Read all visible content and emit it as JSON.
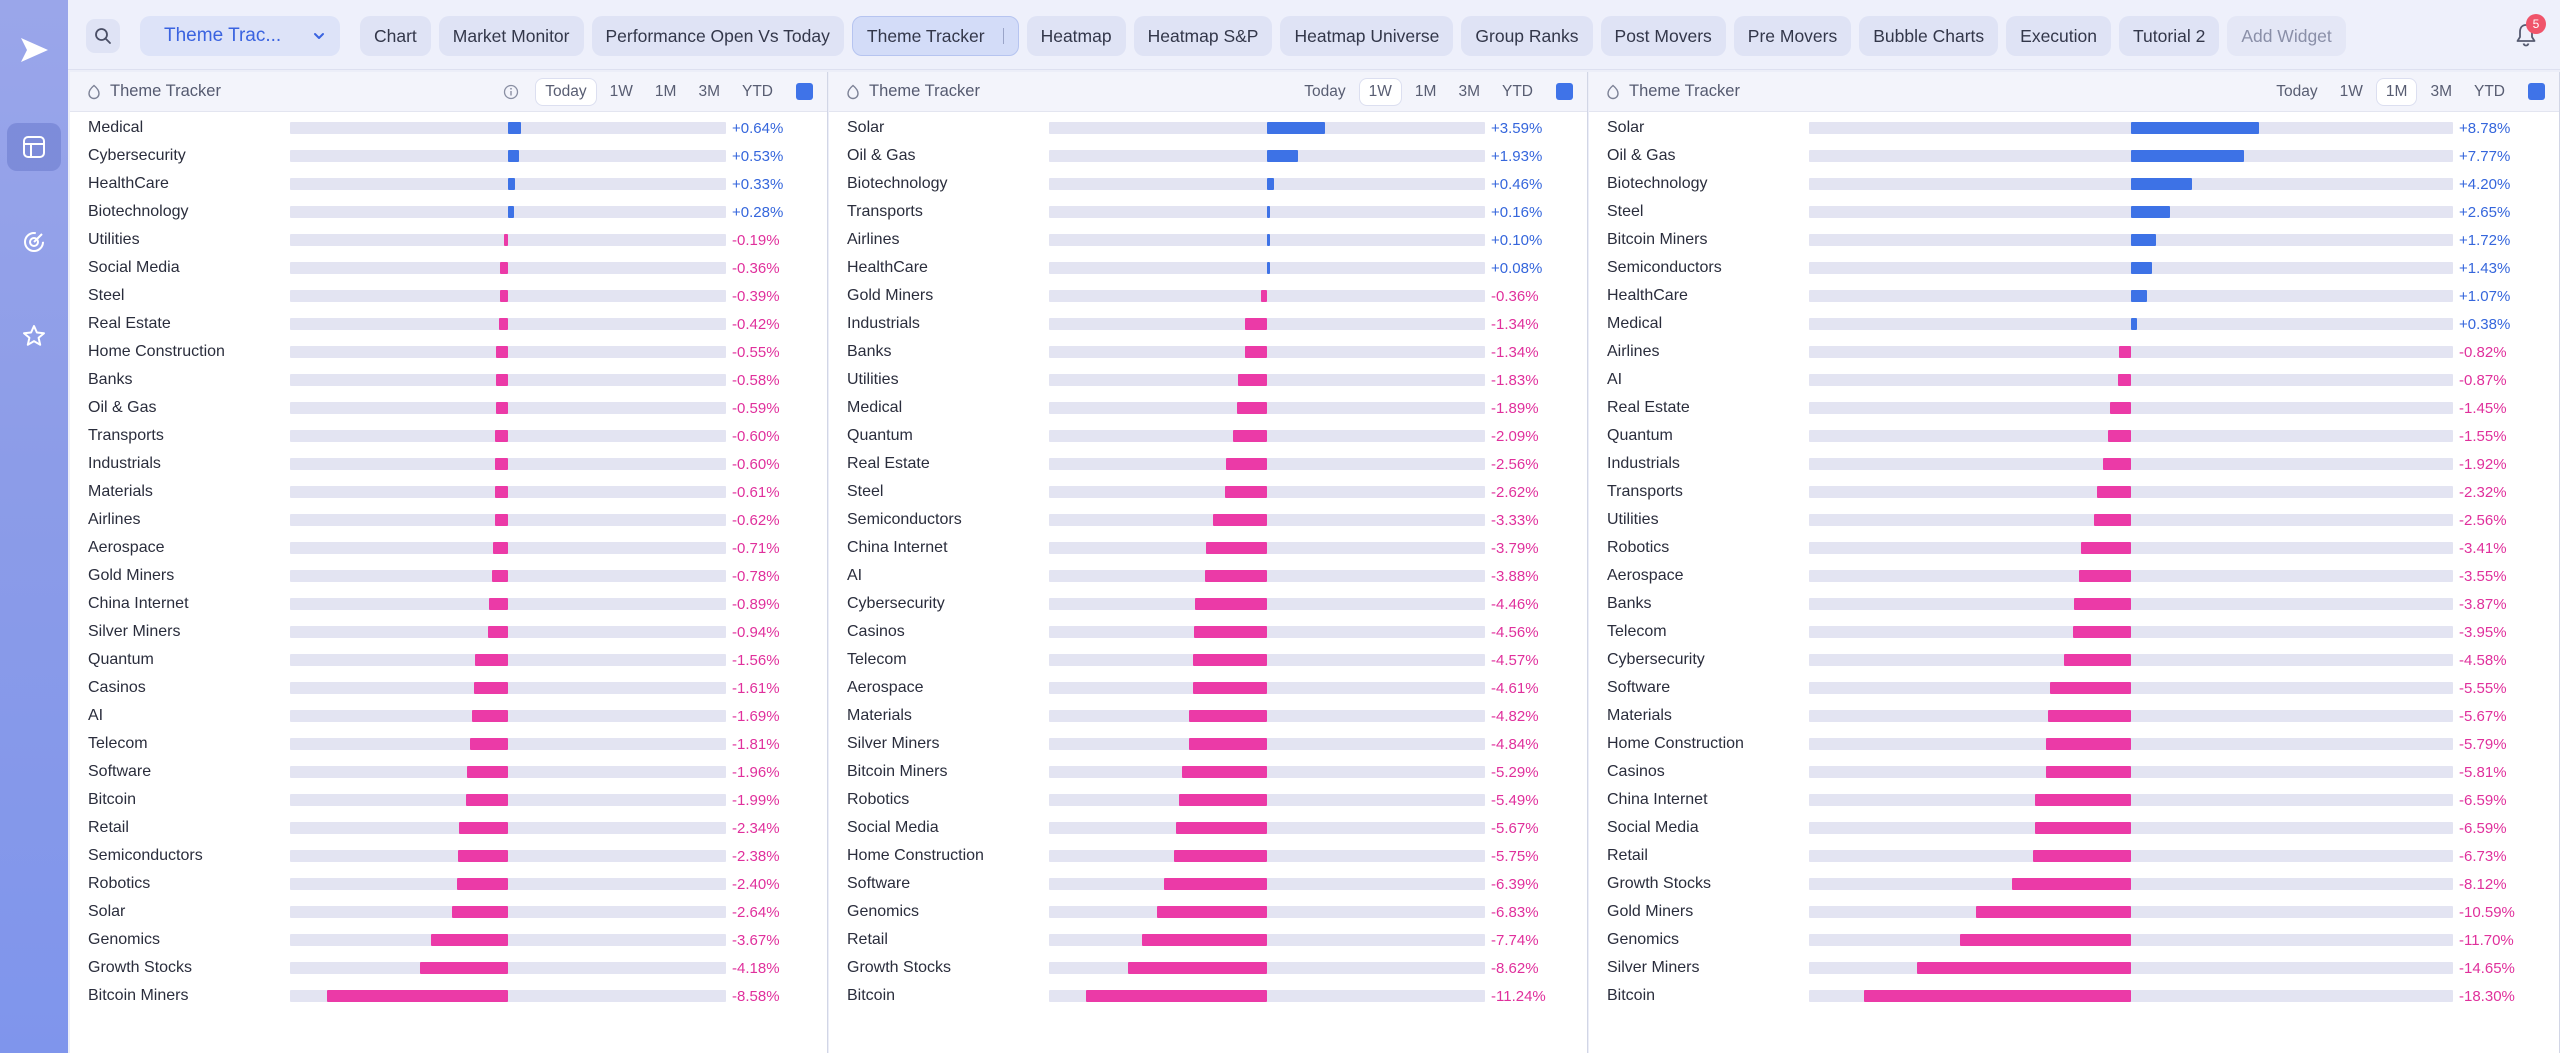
{
  "topbar": {
    "dropdown_label": "Theme Trac...",
    "tabs": [
      {
        "label": "Chart"
      },
      {
        "label": "Market Monitor"
      },
      {
        "label": "Performance Open Vs Today"
      },
      {
        "label": "Theme Tracker",
        "active": true
      },
      {
        "label": "Heatmap"
      },
      {
        "label": "Heatmap S&P"
      },
      {
        "label": "Heatmap Universe"
      },
      {
        "label": "Group Ranks"
      },
      {
        "label": "Post Movers"
      },
      {
        "label": "Pre Movers"
      },
      {
        "label": "Bubble Charts"
      },
      {
        "label": "Execution"
      },
      {
        "label": "Tutorial 2"
      }
    ],
    "add_widget_label": "Add Widget",
    "notification_count": "5"
  },
  "colors": {
    "positive": "#3d72e6",
    "negative": "#eb3aa7"
  },
  "panels": [
    {
      "title": "Theme Tracker",
      "periods": [
        "Today",
        "1W",
        "1M",
        "3M",
        "YTD"
      ],
      "active_period": "Today",
      "max_abs": 8.58,
      "rows": [
        {
          "name": "Medical",
          "value": 0.64,
          "label": "+0.64%"
        },
        {
          "name": "Cybersecurity",
          "value": 0.53,
          "label": "+0.53%"
        },
        {
          "name": "HealthCare",
          "value": 0.33,
          "label": "+0.33%"
        },
        {
          "name": "Biotechnology",
          "value": 0.28,
          "label": "+0.28%"
        },
        {
          "name": "Utilities",
          "value": -0.19,
          "label": "-0.19%"
        },
        {
          "name": "Social Media",
          "value": -0.36,
          "label": "-0.36%"
        },
        {
          "name": "Steel",
          "value": -0.39,
          "label": "-0.39%"
        },
        {
          "name": "Real Estate",
          "value": -0.42,
          "label": "-0.42%"
        },
        {
          "name": "Home Construction",
          "value": -0.55,
          "label": "-0.55%"
        },
        {
          "name": "Banks",
          "value": -0.58,
          "label": "-0.58%"
        },
        {
          "name": "Oil & Gas",
          "value": -0.59,
          "label": "-0.59%"
        },
        {
          "name": "Transports",
          "value": -0.6,
          "label": "-0.60%"
        },
        {
          "name": "Industrials",
          "value": -0.6,
          "label": "-0.60%"
        },
        {
          "name": "Materials",
          "value": -0.61,
          "label": "-0.61%"
        },
        {
          "name": "Airlines",
          "value": -0.62,
          "label": "-0.62%"
        },
        {
          "name": "Aerospace",
          "value": -0.71,
          "label": "-0.71%"
        },
        {
          "name": "Gold Miners",
          "value": -0.78,
          "label": "-0.78%"
        },
        {
          "name": "China Internet",
          "value": -0.89,
          "label": "-0.89%"
        },
        {
          "name": "Silver Miners",
          "value": -0.94,
          "label": "-0.94%"
        },
        {
          "name": "Quantum",
          "value": -1.56,
          "label": "-1.56%"
        },
        {
          "name": "Casinos",
          "value": -1.61,
          "label": "-1.61%"
        },
        {
          "name": "AI",
          "value": -1.69,
          "label": "-1.69%"
        },
        {
          "name": "Telecom",
          "value": -1.81,
          "label": "-1.81%"
        },
        {
          "name": "Software",
          "value": -1.96,
          "label": "-1.96%"
        },
        {
          "name": "Bitcoin",
          "value": -1.99,
          "label": "-1.99%"
        },
        {
          "name": "Retail",
          "value": -2.34,
          "label": "-2.34%"
        },
        {
          "name": "Semiconductors",
          "value": -2.38,
          "label": "-2.38%"
        },
        {
          "name": "Robotics",
          "value": -2.4,
          "label": "-2.40%"
        },
        {
          "name": "Solar",
          "value": -2.64,
          "label": "-2.64%"
        },
        {
          "name": "Genomics",
          "value": -3.67,
          "label": "-3.67%"
        },
        {
          "name": "Growth Stocks",
          "value": -4.18,
          "label": "-4.18%"
        },
        {
          "name": "Bitcoin Miners",
          "value": -8.58,
          "label": "-8.58%"
        }
      ]
    },
    {
      "title": "Theme Tracker",
      "periods": [
        "Today",
        "1W",
        "1M",
        "3M",
        "YTD"
      ],
      "active_period": "1W",
      "max_abs": 11.24,
      "rows": [
        {
          "name": "Solar",
          "value": 3.59,
          "label": "+3.59%"
        },
        {
          "name": "Oil & Gas",
          "value": 1.93,
          "label": "+1.93%"
        },
        {
          "name": "Biotechnology",
          "value": 0.46,
          "label": "+0.46%"
        },
        {
          "name": "Transports",
          "value": 0.16,
          "label": "+0.16%"
        },
        {
          "name": "Airlines",
          "value": 0.1,
          "label": "+0.10%"
        },
        {
          "name": "HealthCare",
          "value": 0.08,
          "label": "+0.08%"
        },
        {
          "name": "Gold Miners",
          "value": -0.36,
          "label": "-0.36%"
        },
        {
          "name": "Industrials",
          "value": -1.34,
          "label": "-1.34%"
        },
        {
          "name": "Banks",
          "value": -1.34,
          "label": "-1.34%"
        },
        {
          "name": "Utilities",
          "value": -1.83,
          "label": "-1.83%"
        },
        {
          "name": "Medical",
          "value": -1.89,
          "label": "-1.89%"
        },
        {
          "name": "Quantum",
          "value": -2.09,
          "label": "-2.09%"
        },
        {
          "name": "Real Estate",
          "value": -2.56,
          "label": "-2.56%"
        },
        {
          "name": "Steel",
          "value": -2.62,
          "label": "-2.62%"
        },
        {
          "name": "Semiconductors",
          "value": -3.33,
          "label": "-3.33%"
        },
        {
          "name": "China Internet",
          "value": -3.79,
          "label": "-3.79%"
        },
        {
          "name": "AI",
          "value": -3.88,
          "label": "-3.88%"
        },
        {
          "name": "Cybersecurity",
          "value": -4.46,
          "label": "-4.46%"
        },
        {
          "name": "Casinos",
          "value": -4.56,
          "label": "-4.56%"
        },
        {
          "name": "Telecom",
          "value": -4.57,
          "label": "-4.57%"
        },
        {
          "name": "Aerospace",
          "value": -4.61,
          "label": "-4.61%"
        },
        {
          "name": "Materials",
          "value": -4.82,
          "label": "-4.82%"
        },
        {
          "name": "Silver Miners",
          "value": -4.84,
          "label": "-4.84%"
        },
        {
          "name": "Bitcoin Miners",
          "value": -5.29,
          "label": "-5.29%"
        },
        {
          "name": "Robotics",
          "value": -5.49,
          "label": "-5.49%"
        },
        {
          "name": "Social Media",
          "value": -5.67,
          "label": "-5.67%"
        },
        {
          "name": "Home Construction",
          "value": -5.75,
          "label": "-5.75%"
        },
        {
          "name": "Software",
          "value": -6.39,
          "label": "-6.39%"
        },
        {
          "name": "Genomics",
          "value": -6.83,
          "label": "-6.83%"
        },
        {
          "name": "Retail",
          "value": -7.74,
          "label": "-7.74%"
        },
        {
          "name": "Growth Stocks",
          "value": -8.62,
          "label": "-8.62%"
        },
        {
          "name": "Bitcoin",
          "value": -11.24,
          "label": "-11.24%"
        }
      ]
    },
    {
      "title": "Theme Tracker",
      "periods": [
        "Today",
        "1W",
        "1M",
        "3M",
        "YTD"
      ],
      "active_period": "1M",
      "max_abs": 18.3,
      "rows": [
        {
          "name": "Solar",
          "value": 8.78,
          "label": "+8.78%"
        },
        {
          "name": "Oil & Gas",
          "value": 7.77,
          "label": "+7.77%"
        },
        {
          "name": "Biotechnology",
          "value": 4.2,
          "label": "+4.20%"
        },
        {
          "name": "Steel",
          "value": 2.65,
          "label": "+2.65%"
        },
        {
          "name": "Bitcoin Miners",
          "value": 1.72,
          "label": "+1.72%"
        },
        {
          "name": "Semiconductors",
          "value": 1.43,
          "label": "+1.43%"
        },
        {
          "name": "HealthCare",
          "value": 1.07,
          "label": "+1.07%"
        },
        {
          "name": "Medical",
          "value": 0.38,
          "label": "+0.38%"
        },
        {
          "name": "Airlines",
          "value": -0.82,
          "label": "-0.82%"
        },
        {
          "name": "AI",
          "value": -0.87,
          "label": "-0.87%"
        },
        {
          "name": "Real Estate",
          "value": -1.45,
          "label": "-1.45%"
        },
        {
          "name": "Quantum",
          "value": -1.55,
          "label": "-1.55%"
        },
        {
          "name": "Industrials",
          "value": -1.92,
          "label": "-1.92%"
        },
        {
          "name": "Transports",
          "value": -2.32,
          "label": "-2.32%"
        },
        {
          "name": "Utilities",
          "value": -2.56,
          "label": "-2.56%"
        },
        {
          "name": "Robotics",
          "value": -3.41,
          "label": "-3.41%"
        },
        {
          "name": "Aerospace",
          "value": -3.55,
          "label": "-3.55%"
        },
        {
          "name": "Banks",
          "value": -3.87,
          "label": "-3.87%"
        },
        {
          "name": "Telecom",
          "value": -3.95,
          "label": "-3.95%"
        },
        {
          "name": "Cybersecurity",
          "value": -4.58,
          "label": "-4.58%"
        },
        {
          "name": "Software",
          "value": -5.55,
          "label": "-5.55%"
        },
        {
          "name": "Materials",
          "value": -5.67,
          "label": "-5.67%"
        },
        {
          "name": "Home Construction",
          "value": -5.79,
          "label": "-5.79%"
        },
        {
          "name": "Casinos",
          "value": -5.81,
          "label": "-5.81%"
        },
        {
          "name": "China Internet",
          "value": -6.59,
          "label": "-6.59%"
        },
        {
          "name": "Social Media",
          "value": -6.59,
          "label": "-6.59%"
        },
        {
          "name": "Retail",
          "value": -6.73,
          "label": "-6.73%"
        },
        {
          "name": "Growth Stocks",
          "value": -8.12,
          "label": "-8.12%"
        },
        {
          "name": "Gold Miners",
          "value": -10.59,
          "label": "-10.59%"
        },
        {
          "name": "Genomics",
          "value": -11.7,
          "label": "-11.70%"
        },
        {
          "name": "Silver Miners",
          "value": -14.65,
          "label": "-14.65%"
        },
        {
          "name": "Bitcoin",
          "value": -18.3,
          "label": "-18.30%"
        }
      ]
    }
  ]
}
